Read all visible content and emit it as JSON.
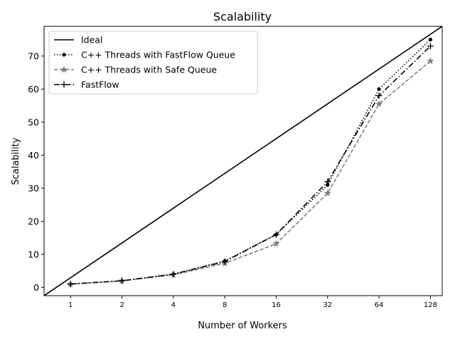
{
  "chart_data": {
    "type": "line",
    "title": "Scalability",
    "xlabel": "Number of Workers",
    "ylabel": "Scalability",
    "x_scale": "log2",
    "x": [
      1,
      2,
      4,
      8,
      16,
      32,
      64,
      128
    ],
    "x_tick_labels": [
      "1",
      "2",
      "4",
      "8",
      "16",
      "32",
      "64",
      "128"
    ],
    "xlim": [
      0.7,
      150
    ],
    "ylim": [
      -2.5,
      79
    ],
    "y_ticks": [
      0,
      10,
      20,
      30,
      40,
      50,
      60,
      70
    ],
    "y_tick_labels": [
      "0",
      "10",
      "20",
      "30",
      "40",
      "50",
      "60",
      "70"
    ],
    "grid": false,
    "legend_position": "top-left",
    "series": [
      {
        "name": "Ideal",
        "style": "solid",
        "marker": "none",
        "color": "#000000",
        "x": [
          0.7,
          150
        ],
        "values": [
          -2.5,
          79
        ]
      },
      {
        "name": "C++ Threads with FastFlow Queue",
        "style": "dotted",
        "marker": "dot",
        "color": "#000000",
        "x": [
          1,
          2,
          4,
          8,
          16,
          32,
          64,
          128
        ],
        "values": [
          1,
          2,
          4,
          8,
          16,
          31,
          60,
          75
        ]
      },
      {
        "name": "C++ Threads with Safe Queue",
        "style": "dashed",
        "marker": "star",
        "color": "#7f7f7f",
        "x": [
          1,
          2,
          4,
          8,
          16,
          32,
          64,
          128
        ],
        "values": [
          1,
          2,
          3.8,
          7.3,
          13.2,
          28.5,
          55.5,
          68.5
        ]
      },
      {
        "name": "FastFlow",
        "style": "dashdot",
        "marker": "plus",
        "color": "#000000",
        "x": [
          1,
          2,
          4,
          8,
          16,
          32,
          64,
          128
        ],
        "values": [
          1,
          2,
          4,
          7.8,
          16,
          32,
          58,
          73
        ]
      }
    ]
  }
}
